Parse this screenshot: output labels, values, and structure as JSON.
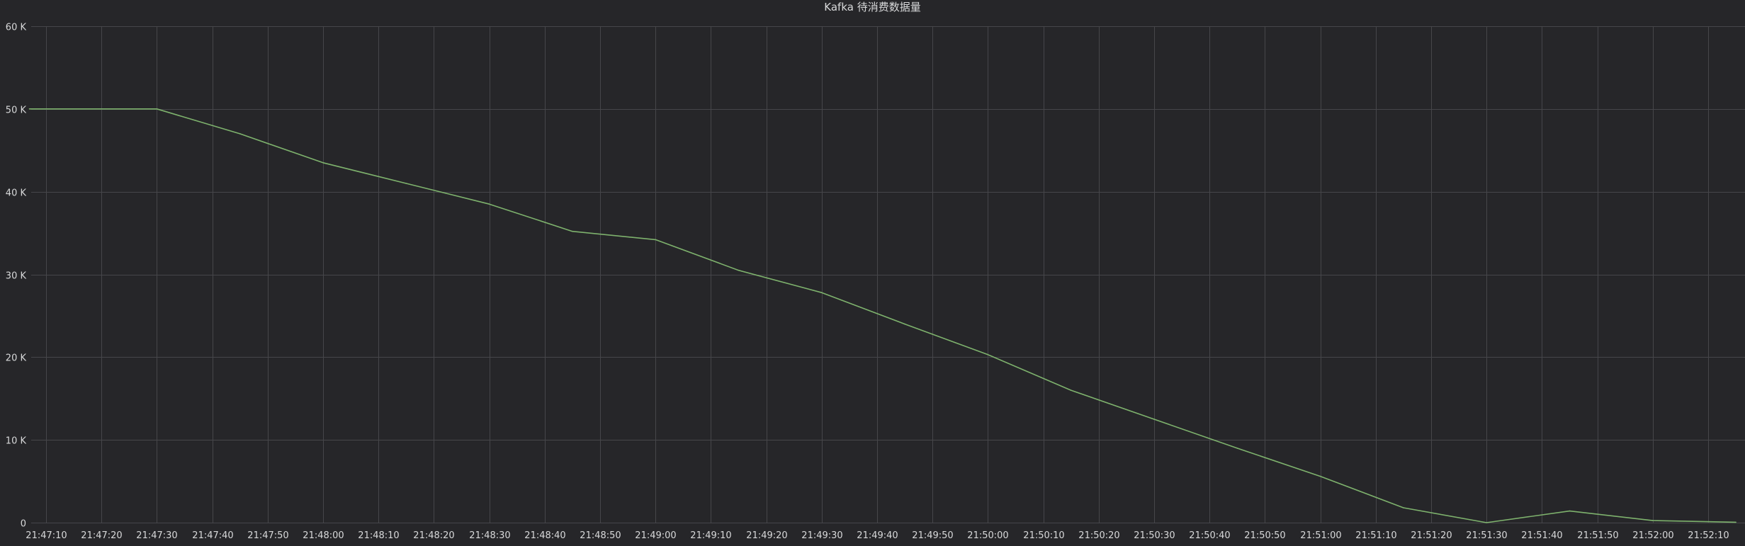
{
  "panel": {
    "title": "Kafka 待消费数据量"
  },
  "chart_data": {
    "type": "line",
    "title": "Kafka 待消费数据量",
    "xlabel": "",
    "ylabel": "",
    "grid": true,
    "ylim": [
      0,
      60000
    ],
    "xlim": [
      "21:47:10",
      "21:52:14"
    ],
    "y_ticks": [
      {
        "value": 0,
        "label": "0"
      },
      {
        "value": 10000,
        "label": "10 K"
      },
      {
        "value": 20000,
        "label": "20 K"
      },
      {
        "value": 30000,
        "label": "30 K"
      },
      {
        "value": 40000,
        "label": "40 K"
      },
      {
        "value": 50000,
        "label": "50 K"
      },
      {
        "value": 60000,
        "label": "60 K"
      }
    ],
    "x_ticks": [
      "21:47:10",
      "21:47:20",
      "21:47:30",
      "21:47:40",
      "21:47:50",
      "21:48:00",
      "21:48:10",
      "21:48:20",
      "21:48:30",
      "21:48:40",
      "21:48:50",
      "21:49:00",
      "21:49:10",
      "21:49:20",
      "21:49:30",
      "21:49:40",
      "21:49:50",
      "21:50:00",
      "21:50:10",
      "21:50:20",
      "21:50:30",
      "21:50:40",
      "21:50:50",
      "21:51:00",
      "21:51:10",
      "21:51:20",
      "21:51:30",
      "21:51:40",
      "21:51:50",
      "21:52:00",
      "21:52:10"
    ],
    "series": [
      {
        "color": "#7eb26d",
        "points": [
          {
            "x": "21:47:07",
            "y": 50000
          },
          {
            "x": "21:47:30",
            "y": 50000
          },
          {
            "x": "21:47:45",
            "y": 47000
          },
          {
            "x": "21:48:00",
            "y": 43500
          },
          {
            "x": "21:48:15",
            "y": 41000
          },
          {
            "x": "21:48:30",
            "y": 38500
          },
          {
            "x": "21:48:45",
            "y": 35200
          },
          {
            "x": "21:49:00",
            "y": 34200
          },
          {
            "x": "21:49:15",
            "y": 30500
          },
          {
            "x": "21:49:30",
            "y": 27800
          },
          {
            "x": "21:49:45",
            "y": 24000
          },
          {
            "x": "21:50:00",
            "y": 20300
          },
          {
            "x": "21:50:15",
            "y": 16000
          },
          {
            "x": "21:50:30",
            "y": 12500
          },
          {
            "x": "21:50:45",
            "y": 9000
          },
          {
            "x": "21:51:00",
            "y": 5600
          },
          {
            "x": "21:51:15",
            "y": 1800
          },
          {
            "x": "21:51:30",
            "y": 0
          },
          {
            "x": "21:51:45",
            "y": 1400
          },
          {
            "x": "21:52:00",
            "y": 250
          },
          {
            "x": "21:52:15",
            "y": 50
          }
        ]
      }
    ]
  }
}
